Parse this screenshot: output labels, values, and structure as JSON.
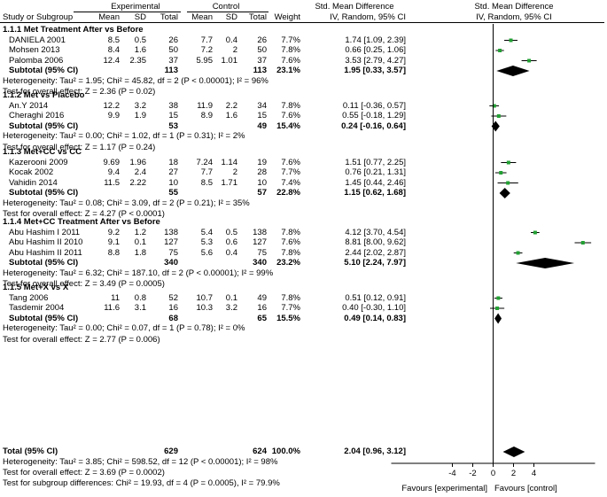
{
  "header": {
    "exp_group": "Experimental",
    "ctrl_group": "Control",
    "smd_title": "Std. Mean Difference",
    "smd_title_right": "Std. Mean Difference",
    "study_col": "Study or Subgroup",
    "mean": "Mean",
    "sd": "SD",
    "total": "Total",
    "mean2": "Mean",
    "sd2": "SD",
    "total2": "Total",
    "weight": "Weight",
    "method": "IV, Random, 95% CI",
    "method_right": "IV, Random, 95% CI"
  },
  "groups": [
    {
      "title": "1.1.1 Met Treatment After vs Before",
      "studies": [
        {
          "name": "DANIELA 2001",
          "m1": "8.5",
          "sd1": "0.5",
          "n1": "26",
          "m2": "7.7",
          "sd2": "0.4",
          "n2": "26",
          "w": "7.7%",
          "ci": "1.74 [1.09, 2.39]"
        },
        {
          "name": "Mohsen 2013",
          "m1": "8.4",
          "sd1": "1.6",
          "n1": "50",
          "m2": "7.2",
          "sd2": "2",
          "n2": "50",
          "w": "7.8%",
          "ci": "0.66 [0.25, 1.06]"
        },
        {
          "name": "Palomba 2006",
          "m1": "12.4",
          "sd1": "2.35",
          "n1": "37",
          "m2": "5.95",
          "sd2": "1.01",
          "n2": "37",
          "w": "7.6%",
          "ci": "3.53 [2.79, 4.27]"
        }
      ],
      "subtotal": {
        "label": "Subtotal (95% CI)",
        "n1": "113",
        "n2": "113",
        "w": "23.1%",
        "ci": "1.95 [0.33, 3.57]"
      },
      "het": "Heterogeneity: Tau² = 1.95; Chi² = 45.82, df = 2 (P < 0.00001); I² = 96%",
      "test": "Test for overall effect: Z = 2.36 (P = 0.02)"
    },
    {
      "title": "1.1.2 Met vs Placebo",
      "studies": [
        {
          "name": "An.Y 2014",
          "m1": "12.2",
          "sd1": "3.2",
          "n1": "38",
          "m2": "11.9",
          "sd2": "2.2",
          "n2": "34",
          "w": "7.8%",
          "ci": "0.11 [-0.36, 0.57]"
        },
        {
          "name": "Cheraghi 2016",
          "m1": "9.9",
          "sd1": "1.9",
          "n1": "15",
          "m2": "8.9",
          "sd2": "1.6",
          "n2": "15",
          "w": "7.6%",
          "ci": "0.55 [-0.18, 1.29]"
        }
      ],
      "subtotal": {
        "label": "Subtotal (95% CI)",
        "n1": "53",
        "n2": "49",
        "w": "15.4%",
        "ci": "0.24 [-0.16, 0.64]"
      },
      "het": "Heterogeneity: Tau² = 0.00; Chi² = 1.02, df = 1 (P = 0.31); I² = 2%",
      "test": "Test for overall effect: Z = 1.17 (P = 0.24)"
    },
    {
      "title": "1.1.3 Met+CC vs CC",
      "studies": [
        {
          "name": "Kazerooni 2009",
          "m1": "9.69",
          "sd1": "1.96",
          "n1": "18",
          "m2": "7.24",
          "sd2": "1.14",
          "n2": "19",
          "w": "7.6%",
          "ci": "1.51 [0.77, 2.25]"
        },
        {
          "name": "Kocak 2002",
          "m1": "9.4",
          "sd1": "2.4",
          "n1": "27",
          "m2": "7.7",
          "sd2": "2",
          "n2": "28",
          "w": "7.7%",
          "ci": "0.76 [0.21, 1.31]"
        },
        {
          "name": "Vahidin 2014",
          "m1": "11.5",
          "sd1": "2.22",
          "n1": "10",
          "m2": "8.5",
          "sd2": "1.71",
          "n2": "10",
          "w": "7.4%",
          "ci": "1.45 [0.44, 2.46]"
        }
      ],
      "subtotal": {
        "label": "Subtotal (95% CI)",
        "n1": "55",
        "n2": "57",
        "w": "22.8%",
        "ci": "1.15 [0.62, 1.68]"
      },
      "het": "Heterogeneity: Tau² = 0.08; Chi² = 3.09, df = 2 (P = 0.21); I² = 35%",
      "test": "Test for overall effect: Z = 4.27 (P < 0.0001)"
    },
    {
      "title": "1.1.4 Met+CC Treatment After vs Before",
      "studies": [
        {
          "name": "Abu Hashim I 2011",
          "m1": "9.2",
          "sd1": "1.2",
          "n1": "138",
          "m2": "5.4",
          "sd2": "0.5",
          "n2": "138",
          "w": "7.8%",
          "ci": "4.12 [3.70, 4.54]"
        },
        {
          "name": "Abu Hashim II 2010",
          "m1": "9.1",
          "sd1": "0.1",
          "n1": "127",
          "m2": "5.3",
          "sd2": "0.6",
          "n2": "127",
          "w": "7.6%",
          "ci": "8.81 [8.00, 9.62]"
        },
        {
          "name": "Abu Hashim II 2011",
          "m1": "8.8",
          "sd1": "1.8",
          "n1": "75",
          "m2": "5.6",
          "sd2": "0.4",
          "n2": "75",
          "w": "7.8%",
          "ci": "2.44 [2.02, 2.87]"
        }
      ],
      "subtotal": {
        "label": "Subtotal (95% CI)",
        "n1": "340",
        "n2": "340",
        "w": "23.2%",
        "ci": "5.10 [2.24, 7.97]"
      },
      "het": "Heterogeneity: Tau² = 6.32; Chi² = 187.10, df = 2 (P < 0.00001); I² = 99%",
      "test": "Test for overall effect: Z = 3.49 (P = 0.0005)"
    },
    {
      "title": "1.1.5 Met+X vs X",
      "studies": [
        {
          "name": "Tang 2006",
          "m1": "11",
          "sd1": "0.8",
          "n1": "52",
          "m2": "10.7",
          "sd2": "0.1",
          "n2": "49",
          "w": "7.8%",
          "ci": "0.51 [0.12, 0.91]"
        },
        {
          "name": "Tasdemir 2004",
          "m1": "11.6",
          "sd1": "3.1",
          "n1": "16",
          "m2": "10.3",
          "sd2": "3.2",
          "n2": "16",
          "w": "7.7%",
          "ci": "0.40 [-0.30, 1.10]"
        }
      ],
      "subtotal": {
        "label": "Subtotal (95% CI)",
        "n1": "68",
        "n2": "65",
        "w": "15.5%",
        "ci": "0.49 [0.14, 0.83]"
      },
      "het": "Heterogeneity: Tau² = 0.00; Chi² = 0.07, df = 1 (P = 0.78); I² = 0%",
      "test": "Test for overall effect: Z = 2.77 (P = 0.006)"
    }
  ],
  "total": {
    "label": "Total (95% CI)",
    "n1": "629",
    "n2": "624",
    "w": "100.0%",
    "ci": "2.04 [0.96, 3.12]",
    "het": "Heterogeneity: Tau² = 3.85; Chi² = 598.52, df = 12 (P < 0.00001); I² = 98%",
    "test": "Test for overall effect: Z = 3.69 (P = 0.0002)",
    "subgroup": "Test for subgroup differences: Chi² = 19.93, df = 4 (P = 0.0005), I² = 79.9%"
  },
  "axis": {
    "ticks": [
      "-4",
      "-2",
      "0",
      "2",
      "4"
    ],
    "favours_left": "Favours [experimental]",
    "favours_right": "Favours [control]"
  },
  "colors": {
    "point": "#22a033",
    "line": "#000000"
  },
  "chart_data": {
    "type": "forest",
    "title": "Std. Mean Difference IV, Random, 95% CI",
    "xlim": [
      -10,
      10
    ],
    "xticks": [
      -4,
      -2,
      0,
      2,
      4
    ],
    "xlabel_left": "Favours [experimental]",
    "xlabel_right": "Favours [control]",
    "studies": [
      {
        "name": "DANIELA 2001",
        "est": 1.74,
        "lo": 1.09,
        "hi": 2.39
      },
      {
        "name": "Mohsen 2013",
        "est": 0.66,
        "lo": 0.25,
        "hi": 1.06
      },
      {
        "name": "Palomba 2006",
        "est": 3.53,
        "lo": 2.79,
        "hi": 4.27
      },
      {
        "name": "An.Y 2014",
        "est": 0.11,
        "lo": -0.36,
        "hi": 0.57
      },
      {
        "name": "Cheraghi 2016",
        "est": 0.55,
        "lo": -0.18,
        "hi": 1.29
      },
      {
        "name": "Kazerooni 2009",
        "est": 1.51,
        "lo": 0.77,
        "hi": 2.25
      },
      {
        "name": "Kocak 2002",
        "est": 0.76,
        "lo": 0.21,
        "hi": 1.31
      },
      {
        "name": "Vahidin 2014",
        "est": 1.45,
        "lo": 0.44,
        "hi": 2.46
      },
      {
        "name": "Abu Hashim I 2011",
        "est": 4.12,
        "lo": 3.7,
        "hi": 4.54
      },
      {
        "name": "Abu Hashim II 2010",
        "est": 8.81,
        "lo": 8.0,
        "hi": 9.62
      },
      {
        "name": "Abu Hashim II 2011",
        "est": 2.44,
        "lo": 2.02,
        "hi": 2.87
      },
      {
        "name": "Tang 2006",
        "est": 0.51,
        "lo": 0.12,
        "hi": 0.91
      },
      {
        "name": "Tasdemir 2004",
        "est": 0.4,
        "lo": -0.3,
        "hi": 1.1
      }
    ],
    "subtotals": [
      {
        "name": "1.1.1 Subtotal",
        "est": 1.95,
        "lo": 0.33,
        "hi": 3.57
      },
      {
        "name": "1.1.2 Subtotal",
        "est": 0.24,
        "lo": -0.16,
        "hi": 0.64
      },
      {
        "name": "1.1.3 Subtotal",
        "est": 1.15,
        "lo": 0.62,
        "hi": 1.68
      },
      {
        "name": "1.1.4 Subtotal",
        "est": 5.1,
        "lo": 2.24,
        "hi": 7.97
      },
      {
        "name": "1.1.5 Subtotal",
        "est": 0.49,
        "lo": 0.14,
        "hi": 0.83
      }
    ],
    "overall": {
      "name": "Total",
      "est": 2.04,
      "lo": 0.96,
      "hi": 3.12
    }
  }
}
